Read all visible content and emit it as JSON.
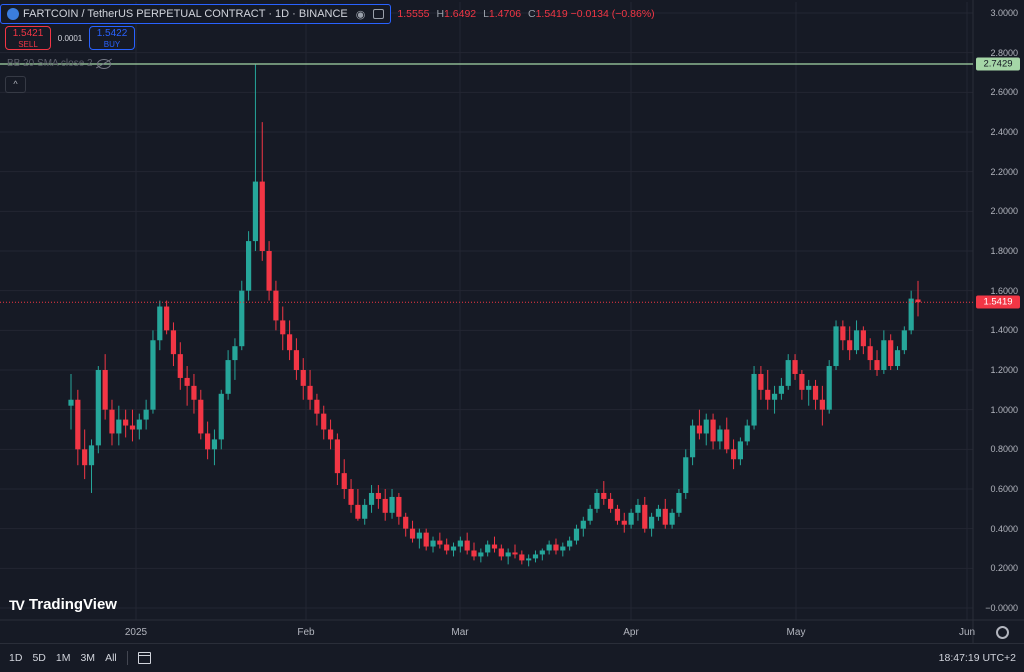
{
  "header": {
    "symbol_title": "FARTCOIN / TetherUS PERPETUAL CONTRACT · 1D · BINANCE",
    "ohlc": {
      "o": "1.5555",
      "h": "1.6492",
      "l": "1.4706",
      "c": "1.5419",
      "chg": "−0.0134 (−0.86%)"
    },
    "ohlc_keys": {
      "o": "",
      "h": "H",
      "l": "L",
      "c": "C"
    }
  },
  "trade": {
    "sell_price": "1.5421",
    "sell_label": "SELL",
    "spread": "0.0001",
    "buy_price": "1.5422",
    "buy_label": "BUY"
  },
  "indicator": {
    "label": "BB 20 SMA close 2"
  },
  "collapse_symbol": "^",
  "logo": {
    "mark": "TV",
    "text": "TradingView"
  },
  "price_tags": {
    "level": "2.7429",
    "last": "1.5419"
  },
  "bottom_bar": {
    "ranges": [
      "1D",
      "5D",
      "1M",
      "3M",
      "All"
    ],
    "clock": "18:47:19 UTC+2"
  },
  "colors": {
    "up": "#26a69a",
    "down": "#f23645",
    "level_line": "#a5d6a7",
    "background": "#161a25",
    "grid": "#232632"
  },
  "chart_data": {
    "type": "candlestick",
    "title": "FARTCOIN / TetherUS PERPETUAL CONTRACT · 1D · BINANCE",
    "ylim": [
      -0.05,
      3.05
    ],
    "y_ticks": [
      "3.0000",
      "2.8000",
      "2.6000",
      "2.4000",
      "2.2000",
      "2.0000",
      "1.8000",
      "1.6000",
      "1.4000",
      "1.2000",
      "1.0000",
      "0.8000",
      "0.6000",
      "0.4000",
      "0.2000",
      "−0.0000"
    ],
    "x_ticks": [
      "2025",
      "Feb",
      "Mar",
      "Apr",
      "May",
      "Jun"
    ],
    "horizontal_level": 2.7429,
    "last_price": 1.5419,
    "grid": true,
    "candles": [
      [
        1.02,
        1.18,
        0.9,
        1.05
      ],
      [
        1.05,
        1.1,
        0.72,
        0.8
      ],
      [
        0.8,
        0.9,
        0.65,
        0.72
      ],
      [
        0.72,
        0.85,
        0.58,
        0.82
      ],
      [
        0.82,
        1.22,
        0.78,
        1.2
      ],
      [
        1.2,
        1.28,
        0.95,
        1.0
      ],
      [
        1.0,
        1.05,
        0.82,
        0.88
      ],
      [
        0.88,
        1.02,
        0.82,
        0.95
      ],
      [
        0.95,
        1.0,
        0.86,
        0.92
      ],
      [
        0.92,
        1.0,
        0.84,
        0.9
      ],
      [
        0.9,
        0.98,
        0.85,
        0.95
      ],
      [
        0.95,
        1.05,
        0.9,
        1.0
      ],
      [
        1.0,
        1.4,
        0.98,
        1.35
      ],
      [
        1.35,
        1.55,
        1.3,
        1.52
      ],
      [
        1.52,
        1.55,
        1.38,
        1.4
      ],
      [
        1.4,
        1.44,
        1.22,
        1.28
      ],
      [
        1.28,
        1.34,
        1.1,
        1.16
      ],
      [
        1.16,
        1.22,
        1.02,
        1.12
      ],
      [
        1.12,
        1.18,
        0.98,
        1.05
      ],
      [
        1.05,
        1.1,
        0.85,
        0.88
      ],
      [
        0.88,
        0.94,
        0.75,
        0.8
      ],
      [
        0.8,
        0.9,
        0.72,
        0.85
      ],
      [
        0.85,
        1.1,
        0.8,
        1.08
      ],
      [
        1.08,
        1.3,
        1.05,
        1.25
      ],
      [
        1.25,
        1.36,
        1.15,
        1.32
      ],
      [
        1.32,
        1.65,
        1.3,
        1.6
      ],
      [
        1.6,
        1.9,
        1.55,
        1.85
      ],
      [
        1.85,
        2.74,
        1.8,
        2.15
      ],
      [
        2.15,
        2.45,
        1.75,
        1.8
      ],
      [
        1.8,
        1.85,
        1.55,
        1.6
      ],
      [
        1.6,
        1.65,
        1.4,
        1.45
      ],
      [
        1.45,
        1.52,
        1.3,
        1.38
      ],
      [
        1.38,
        1.45,
        1.25,
        1.3
      ],
      [
        1.3,
        1.36,
        1.15,
        1.2
      ],
      [
        1.2,
        1.26,
        1.05,
        1.12
      ],
      [
        1.12,
        1.2,
        1.0,
        1.05
      ],
      [
        1.05,
        1.08,
        0.92,
        0.98
      ],
      [
        0.98,
        1.02,
        0.85,
        0.9
      ],
      [
        0.9,
        0.95,
        0.8,
        0.85
      ],
      [
        0.85,
        0.88,
        0.62,
        0.68
      ],
      [
        0.68,
        0.75,
        0.55,
        0.6
      ],
      [
        0.6,
        0.65,
        0.48,
        0.52
      ],
      [
        0.52,
        0.6,
        0.44,
        0.45
      ],
      [
        0.45,
        0.55,
        0.42,
        0.52
      ],
      [
        0.52,
        0.62,
        0.48,
        0.58
      ],
      [
        0.58,
        0.62,
        0.5,
        0.55
      ],
      [
        0.55,
        0.6,
        0.44,
        0.48
      ],
      [
        0.48,
        0.6,
        0.45,
        0.56
      ],
      [
        0.56,
        0.58,
        0.42,
        0.46
      ],
      [
        0.46,
        0.48,
        0.36,
        0.4
      ],
      [
        0.4,
        0.44,
        0.33,
        0.35
      ],
      [
        0.35,
        0.4,
        0.3,
        0.38
      ],
      [
        0.38,
        0.4,
        0.29,
        0.31
      ],
      [
        0.31,
        0.36,
        0.28,
        0.34
      ],
      [
        0.34,
        0.38,
        0.3,
        0.32
      ],
      [
        0.32,
        0.35,
        0.27,
        0.29
      ],
      [
        0.29,
        0.33,
        0.26,
        0.31
      ],
      [
        0.31,
        0.36,
        0.28,
        0.34
      ],
      [
        0.34,
        0.38,
        0.27,
        0.29
      ],
      [
        0.29,
        0.33,
        0.24,
        0.26
      ],
      [
        0.26,
        0.3,
        0.23,
        0.28
      ],
      [
        0.28,
        0.34,
        0.26,
        0.32
      ],
      [
        0.32,
        0.36,
        0.28,
        0.3
      ],
      [
        0.3,
        0.32,
        0.24,
        0.26
      ],
      [
        0.26,
        0.3,
        0.22,
        0.28
      ],
      [
        0.28,
        0.32,
        0.25,
        0.27
      ],
      [
        0.27,
        0.29,
        0.22,
        0.24
      ],
      [
        0.24,
        0.27,
        0.21,
        0.25
      ],
      [
        0.25,
        0.29,
        0.23,
        0.27
      ],
      [
        0.27,
        0.3,
        0.24,
        0.29
      ],
      [
        0.29,
        0.34,
        0.27,
        0.32
      ],
      [
        0.32,
        0.35,
        0.27,
        0.29
      ],
      [
        0.29,
        0.33,
        0.26,
        0.31
      ],
      [
        0.31,
        0.36,
        0.29,
        0.34
      ],
      [
        0.34,
        0.42,
        0.32,
        0.4
      ],
      [
        0.4,
        0.46,
        0.36,
        0.44
      ],
      [
        0.44,
        0.52,
        0.42,
        0.5
      ],
      [
        0.5,
        0.6,
        0.48,
        0.58
      ],
      [
        0.58,
        0.64,
        0.52,
        0.55
      ],
      [
        0.55,
        0.58,
        0.48,
        0.5
      ],
      [
        0.5,
        0.52,
        0.42,
        0.44
      ],
      [
        0.44,
        0.48,
        0.38,
        0.42
      ],
      [
        0.42,
        0.5,
        0.4,
        0.48
      ],
      [
        0.48,
        0.55,
        0.44,
        0.52
      ],
      [
        0.52,
        0.56,
        0.38,
        0.4
      ],
      [
        0.4,
        0.48,
        0.36,
        0.46
      ],
      [
        0.46,
        0.52,
        0.44,
        0.5
      ],
      [
        0.5,
        0.55,
        0.4,
        0.42
      ],
      [
        0.42,
        0.5,
        0.4,
        0.48
      ],
      [
        0.48,
        0.6,
        0.46,
        0.58
      ],
      [
        0.58,
        0.8,
        0.55,
        0.76
      ],
      [
        0.76,
        0.95,
        0.72,
        0.92
      ],
      [
        0.92,
        1.0,
        0.85,
        0.88
      ],
      [
        0.88,
        0.98,
        0.82,
        0.95
      ],
      [
        0.95,
        0.98,
        0.8,
        0.84
      ],
      [
        0.84,
        0.92,
        0.8,
        0.9
      ],
      [
        0.9,
        0.96,
        0.78,
        0.8
      ],
      [
        0.8,
        0.85,
        0.7,
        0.75
      ],
      [
        0.75,
        0.86,
        0.72,
        0.84
      ],
      [
        0.84,
        0.95,
        0.82,
        0.92
      ],
      [
        0.92,
        1.22,
        0.9,
        1.18
      ],
      [
        1.18,
        1.22,
        1.05,
        1.1
      ],
      [
        1.1,
        1.2,
        1.0,
        1.05
      ],
      [
        1.05,
        1.12,
        0.98,
        1.08
      ],
      [
        1.08,
        1.16,
        1.05,
        1.12
      ],
      [
        1.12,
        1.28,
        1.1,
        1.25
      ],
      [
        1.25,
        1.28,
        1.15,
        1.18
      ],
      [
        1.18,
        1.2,
        1.05,
        1.1
      ],
      [
        1.1,
        1.15,
        1.02,
        1.12
      ],
      [
        1.12,
        1.15,
        1.0,
        1.05
      ],
      [
        1.05,
        1.12,
        0.92,
        1.0
      ],
      [
        1.0,
        1.25,
        0.98,
        1.22
      ],
      [
        1.22,
        1.45,
        1.2,
        1.42
      ],
      [
        1.42,
        1.45,
        1.3,
        1.35
      ],
      [
        1.35,
        1.42,
        1.25,
        1.3
      ],
      [
        1.3,
        1.45,
        1.28,
        1.4
      ],
      [
        1.4,
        1.42,
        1.28,
        1.32
      ],
      [
        1.32,
        1.36,
        1.2,
        1.25
      ],
      [
        1.25,
        1.3,
        1.17,
        1.2
      ],
      [
        1.2,
        1.4,
        1.18,
        1.35
      ],
      [
        1.35,
        1.38,
        1.2,
        1.22
      ],
      [
        1.22,
        1.32,
        1.2,
        1.3
      ],
      [
        1.3,
        1.42,
        1.28,
        1.4
      ],
      [
        1.4,
        1.6,
        1.38,
        1.56
      ],
      [
        1.5555,
        1.6492,
        1.4706,
        1.5419
      ]
    ]
  }
}
